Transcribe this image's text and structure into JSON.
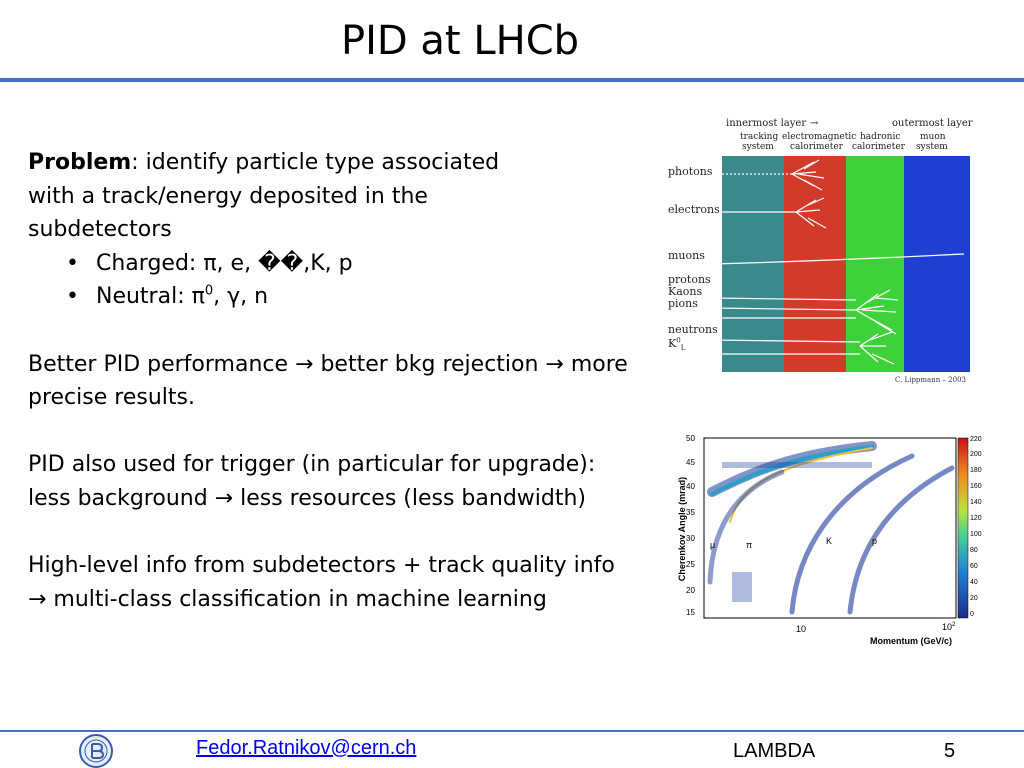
{
  "slide": {
    "title": "PID at LHCb",
    "problem_label": "Problem",
    "problem_rest": ": identify particle type associated",
    "problem_line2": "with a track/energy deposited in the",
    "problem_line3": "subdetectors",
    "bullets": [
      {
        "prefix": "Charged: π, e, ",
        "mid": "��",
        "suffix": ",K, p"
      },
      {
        "prefix": "Neutral: π",
        "sup": "0",
        "suffix": ", γ, n"
      }
    ],
    "para2": "Better PID performance → better bkg rejection → more precise results.",
    "para3": "PID also used for trigger (in particular for upgrade): less background → less resources (less bandwidth)",
    "para4": "High-level info from subdetectors + track quality info → multi-class classification in machine learning"
  },
  "detector_figure": {
    "innermost": "innermost layer",
    "outermost": "outermost layer",
    "arrow": "→",
    "layers": [
      {
        "name1": "tracking",
        "name2": "system",
        "color": "#3a8a8c"
      },
      {
        "name1": "electromagnetic",
        "name2": "calorimeter",
        "color": "#d23b2a"
      },
      {
        "name1": "hadronic",
        "name2": "calorimeter",
        "color": "#3fd13a"
      },
      {
        "name1": "muon",
        "name2": "system",
        "color": "#1e3fd0"
      }
    ],
    "particles": {
      "photons": "photons",
      "electrons": "electrons",
      "muons": "muons",
      "protons": "protons",
      "kaons": "Kaons",
      "pions": "pions",
      "neutrons": "neutrons",
      "k0l_base": "K",
      "k0l_sup": "0",
      "k0l_sub": "L"
    },
    "credit": "C. Lippmann – 2003"
  },
  "cherenkov_plot": {
    "ylabel": "Cherenkov Angle (mrad)",
    "xlabel": "Momentum (GeV/c)",
    "yticks": [
      "50",
      "45",
      "40",
      "35",
      "30",
      "25",
      "20",
      "15"
    ],
    "xticks": [
      "10",
      "10"
    ],
    "xtick_sup": "2",
    "colorbar_ticks": [
      "220",
      "200",
      "180",
      "160",
      "140",
      "120",
      "100",
      "80",
      "60",
      "40",
      "20",
      "0"
    ],
    "particle_labels": [
      "μ",
      "π",
      "K",
      "p"
    ]
  },
  "footer": {
    "email": "Fedor.Ratnikov@cern.ch",
    "conference": "LAMBDA",
    "page": "5"
  },
  "colors": {
    "accent_rule": "#4472c4",
    "link": "#0000ee"
  }
}
